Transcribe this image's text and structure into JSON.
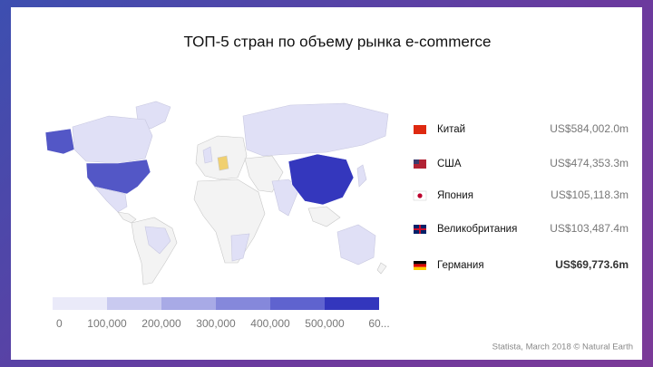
{
  "title": "ТОП-5 стран по объему рынка e-commerce",
  "countries": [
    {
      "name": "Китай",
      "value": "US$584,002.0m"
    },
    {
      "name": "США",
      "value": "US$474,353.3m"
    },
    {
      "name": "Япония",
      "value": "US$105,118.3m"
    },
    {
      "name": "Великобритания",
      "value": "US$103,487.4m"
    },
    {
      "name": "Германия",
      "value": "US$69,773.6m"
    }
  ],
  "legend": {
    "ticks": [
      "0",
      "100,000",
      "200,000",
      "300,000",
      "400,000",
      "500,000",
      "60..."
    ]
  },
  "source": "Statista, March 2018 © Natural Earth"
}
